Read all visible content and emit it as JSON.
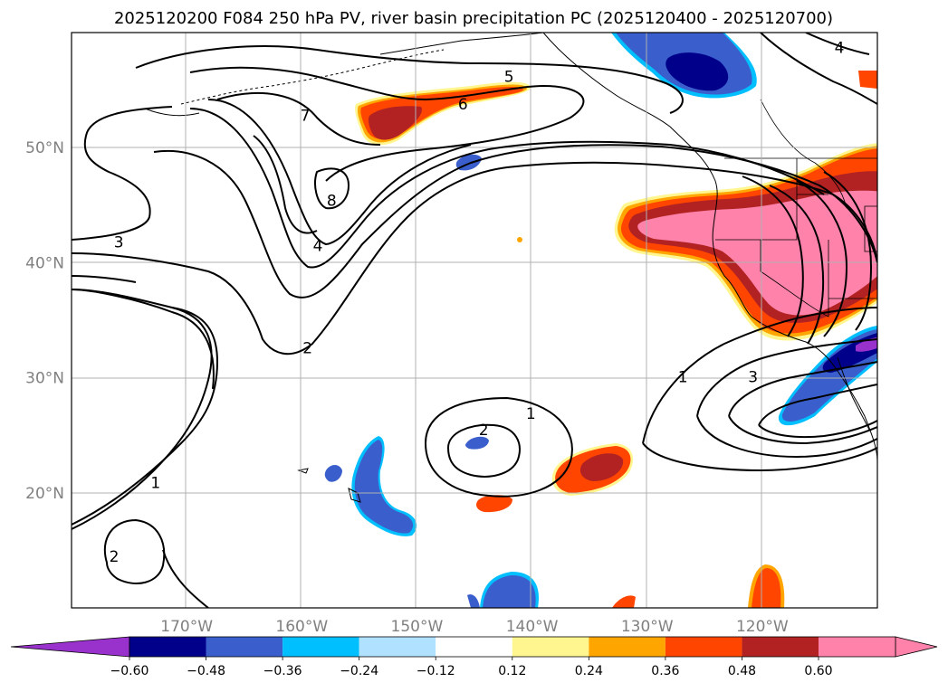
{
  "chart_data": {
    "type": "map-contour",
    "title": "2025120200 F084 250 hPa PV, river basin precipitation PC (2025120400 - 2025120700)",
    "lon_range": [
      -180,
      -110
    ],
    "lat_range": [
      10,
      60
    ],
    "x_ticks": [
      {
        "lon": -170,
        "label": "170°W"
      },
      {
        "lon": -160,
        "label": "160°W"
      },
      {
        "lon": -150,
        "label": "150°W"
      },
      {
        "lon": -140,
        "label": "140°W"
      },
      {
        "lon": -130,
        "label": "130°W"
      },
      {
        "lon": -120,
        "label": "120°W"
      }
    ],
    "y_ticks": [
      {
        "lat": 50,
        "label": "50°N"
      },
      {
        "lat": 40,
        "label": "40°N"
      },
      {
        "lat": 30,
        "label": "30°N"
      },
      {
        "lat": 20,
        "label": "20°N"
      }
    ],
    "colorbar": {
      "levels": [
        -0.6,
        -0.48,
        -0.36,
        -0.24,
        -0.12,
        0.12,
        0.24,
        0.36,
        0.48,
        0.6
      ],
      "labels": [
        "−0.60",
        "−0.48",
        "−0.36",
        "−0.24",
        "−0.12",
        "0.12",
        "0.24",
        "0.36",
        "0.48",
        "0.60"
      ],
      "colors": [
        "#9932cc",
        "#00008b",
        "#3a5fcd",
        "#00bfff",
        "#b0e2ff",
        "#ffffff",
        "#fff68f",
        "#ffa500",
        "#ff4500",
        "#b22222",
        "#ff82ab"
      ],
      "extend": "both"
    },
    "pv_contour_levels": [
      1,
      2,
      3,
      4,
      5,
      6,
      7,
      8
    ],
    "pv_contour_labels": [
      {
        "lon": -142,
        "lat": 56.2,
        "text": "5"
      },
      {
        "lon": -146,
        "lat": 53.8,
        "text": "6"
      },
      {
        "lon": -159.7,
        "lat": 52.8,
        "text": "7"
      },
      {
        "lon": -157.4,
        "lat": 45.4,
        "text": "8"
      },
      {
        "lon": -158.6,
        "lat": 41.5,
        "text": "4"
      },
      {
        "lon": -175.9,
        "lat": 41.8,
        "text": "3"
      },
      {
        "lon": -159.5,
        "lat": 32.6,
        "text": "2"
      },
      {
        "lon": -172.7,
        "lat": 20.9,
        "text": "1"
      },
      {
        "lon": -176.3,
        "lat": 14.5,
        "text": "2"
      },
      {
        "lon": -140.1,
        "lat": 26.9,
        "text": "1"
      },
      {
        "lon": -144.2,
        "lat": 25.5,
        "text": "2"
      },
      {
        "lon": -126.9,
        "lat": 30.1,
        "text": "1"
      },
      {
        "lon": -120.8,
        "lat": 30.1,
        "text": "3"
      },
      {
        "lon": -113.3,
        "lat": 58.7,
        "text": "4"
      }
    ]
  }
}
